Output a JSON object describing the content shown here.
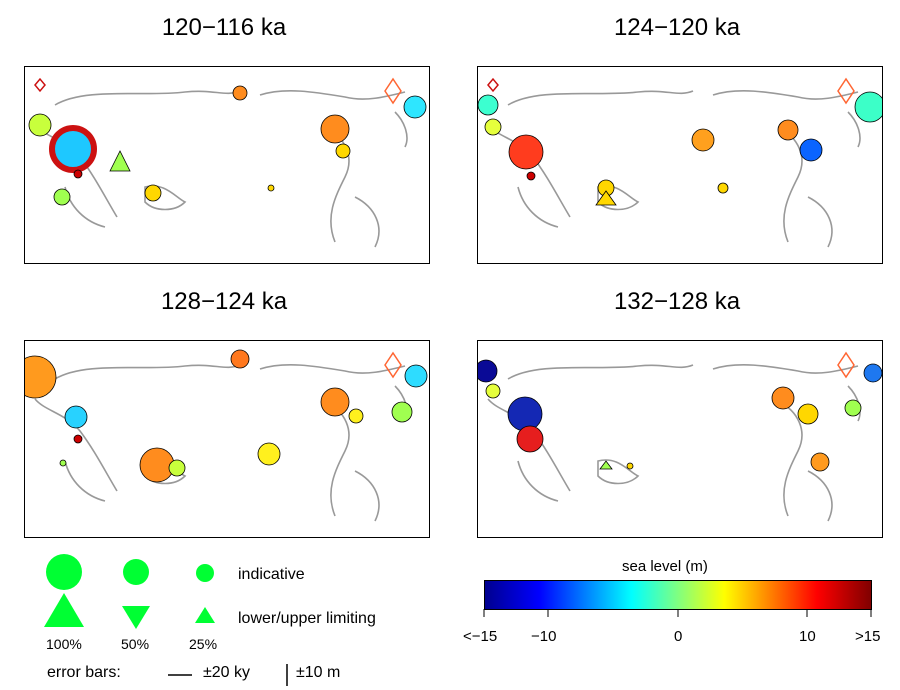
{
  "panels": [
    {
      "title": "120−116 ka"
    },
    {
      "title": "124−120 ka"
    },
    {
      "title": "128−124 ka"
    },
    {
      "title": "132−128 ka"
    }
  ],
  "legend": {
    "indicative": "indicative",
    "limiting": "lower/upper limiting",
    "percents": [
      "100%",
      "50%",
      "25%"
    ],
    "error_bars_label": "error bars:",
    "error_time": "±20 ky",
    "error_level": "±10 m",
    "marker_color": "#00ff33"
  },
  "colorbar": {
    "title": "sea level (m)",
    "ticks": [
      "<−15",
      "−10",
      "0",
      "10",
      ">15"
    ],
    "colors": [
      "#00008f",
      "#0000ff",
      "#00ffff",
      "#ffff00",
      "#ff0000",
      "#800000"
    ]
  }
}
